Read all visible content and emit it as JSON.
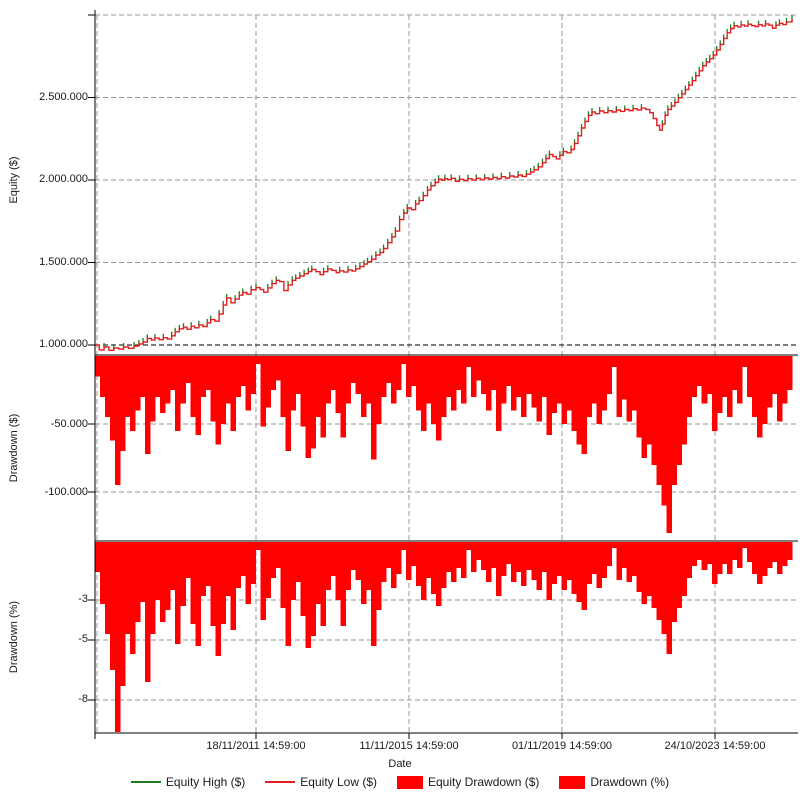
{
  "colors": {
    "background": "#ffffff",
    "equity_high_green": "#1e7d1e",
    "equity_low_red": "#e02020",
    "drawdown_fill_red": "#ff0000",
    "grid_gray": "#9a9a9a",
    "axis_black": "#000000",
    "text": "#1a1a1a"
  },
  "panels": {
    "equity": {
      "ylabel": "Equity ($)",
      "yticks": [
        "2.500.000",
        "2.000.000",
        "1.500.000",
        "1.000.000"
      ]
    },
    "drawdown_dollars": {
      "ylabel": "Drawdown ($)",
      "yticks": [
        "-50.000",
        "-100.000"
      ]
    },
    "drawdown_percent": {
      "ylabel": "Drawdown (%)",
      "yticks": [
        "-3",
        "-5",
        "-8"
      ]
    }
  },
  "xaxis": {
    "label": "Date",
    "ticks": [
      "18/11/2011 14:59:00",
      "11/11/2015 14:59:00",
      "01/11/2019 14:59:00",
      "24/10/2023 14:59:00"
    ]
  },
  "legend": {
    "items": [
      {
        "label": "Equity High ($)",
        "swatch": "line",
        "color": "#1e7d1e"
      },
      {
        "label": "Equity Low ($)",
        "swatch": "line",
        "color": "#e02020"
      },
      {
        "label": "Equity Drawdown ($)",
        "swatch": "box",
        "color": "#ff0000"
      },
      {
        "label": "Drawdown (%)",
        "swatch": "box",
        "color": "#ff0000"
      }
    ]
  },
  "chart_data": [
    {
      "type": "line",
      "title": "Equity curve",
      "ylabel": "Equity ($)",
      "ylim": [
        950000,
        3000000
      ],
      "x_axis_label": "Date",
      "x_tick_labels": [
        "18/11/2011 14:59:00",
        "11/11/2015 14:59:00",
        "01/11/2019 14:59:00",
        "24/10/2023 14:59:00"
      ],
      "x_unit": "fraction of shared date axis (approx. 2009 to 2025)",
      "series": [
        {
          "name": "Equity High ($)",
          "color": "#1e7d1e",
          "note": "nearly overlaps Equity Low; visible as small green up-ticks above the red line"
        },
        {
          "name": "Equity Low ($)",
          "color": "#e02020",
          "note": "main visible stepped red line; points below are [x_fraction, dollars]"
        }
      ],
      "points": [
        [
          0.0,
          1000000
        ],
        [
          0.006,
          970000
        ],
        [
          0.013,
          988000
        ],
        [
          0.02,
          968000
        ],
        [
          0.027,
          982000
        ],
        [
          0.034,
          975000
        ],
        [
          0.041,
          988000
        ],
        [
          0.048,
          980000
        ],
        [
          0.056,
          994000
        ],
        [
          0.063,
          1006000
        ],
        [
          0.069,
          1018000
        ],
        [
          0.075,
          1040000
        ],
        [
          0.081,
          1030000
        ],
        [
          0.086,
          1042000
        ],
        [
          0.092,
          1032000
        ],
        [
          0.098,
          1044000
        ],
        [
          0.104,
          1036000
        ],
        [
          0.11,
          1056000
        ],
        [
          0.115,
          1080000
        ],
        [
          0.121,
          1098000
        ],
        [
          0.127,
          1108000
        ],
        [
          0.132,
          1096000
        ],
        [
          0.138,
          1114000
        ],
        [
          0.143,
          1104000
        ],
        [
          0.149,
          1122000
        ],
        [
          0.155,
          1112000
        ],
        [
          0.161,
          1134000
        ],
        [
          0.166,
          1154000
        ],
        [
          0.172,
          1144000
        ],
        [
          0.178,
          1188000
        ],
        [
          0.184,
          1242000
        ],
        [
          0.189,
          1285000
        ],
        [
          0.195,
          1256000
        ],
        [
          0.201,
          1278000
        ],
        [
          0.207,
          1302000
        ],
        [
          0.212,
          1318000
        ],
        [
          0.218,
          1308000
        ],
        [
          0.224,
          1335000
        ],
        [
          0.231,
          1348000
        ],
        [
          0.237,
          1336000
        ],
        [
          0.242,
          1320000
        ],
        [
          0.248,
          1346000
        ],
        [
          0.254,
          1372000
        ],
        [
          0.26,
          1392000
        ],
        [
          0.265,
          1384000
        ],
        [
          0.271,
          1330000
        ],
        [
          0.277,
          1364000
        ],
        [
          0.283,
          1392000
        ],
        [
          0.288,
          1405000
        ],
        [
          0.294,
          1418000
        ],
        [
          0.3,
          1432000
        ],
        [
          0.306,
          1445000
        ],
        [
          0.311,
          1458000
        ],
        [
          0.317,
          1444000
        ],
        [
          0.323,
          1426000
        ],
        [
          0.328,
          1444000
        ],
        [
          0.334,
          1460000
        ],
        [
          0.34,
          1452000
        ],
        [
          0.346,
          1438000
        ],
        [
          0.351,
          1450000
        ],
        [
          0.357,
          1442000
        ],
        [
          0.363,
          1455000
        ],
        [
          0.369,
          1448000
        ],
        [
          0.374,
          1462000
        ],
        [
          0.38,
          1475000
        ],
        [
          0.386,
          1490000
        ],
        [
          0.391,
          1505000
        ],
        [
          0.397,
          1520000
        ],
        [
          0.403,
          1545000
        ],
        [
          0.409,
          1560000
        ],
        [
          0.414,
          1585000
        ],
        [
          0.42,
          1620000
        ],
        [
          0.426,
          1655000
        ],
        [
          0.431,
          1690000
        ],
        [
          0.437,
          1760000
        ],
        [
          0.443,
          1800000
        ],
        [
          0.448,
          1830000
        ],
        [
          0.454,
          1820000
        ],
        [
          0.46,
          1855000
        ],
        [
          0.465,
          1875000
        ],
        [
          0.471,
          1905000
        ],
        [
          0.477,
          1940000
        ],
        [
          0.482,
          1965000
        ],
        [
          0.488,
          1985000
        ],
        [
          0.493,
          2005000
        ],
        [
          0.498,
          1998000
        ],
        [
          0.502,
          2008000
        ],
        [
          0.506,
          2002000
        ],
        [
          0.511,
          2010000
        ],
        [
          0.517,
          1992000
        ],
        [
          0.523,
          2004000
        ],
        [
          0.529,
          1996000
        ],
        [
          0.535,
          2008000
        ],
        [
          0.541,
          2000000
        ],
        [
          0.547,
          2010000
        ],
        [
          0.553,
          2002000
        ],
        [
          0.559,
          2012000
        ],
        [
          0.565,
          2006000
        ],
        [
          0.571,
          2016000
        ],
        [
          0.577,
          2008000
        ],
        [
          0.583,
          2020000
        ],
        [
          0.589,
          2012000
        ],
        [
          0.595,
          2024000
        ],
        [
          0.601,
          2018000
        ],
        [
          0.607,
          2030000
        ],
        [
          0.613,
          2022000
        ],
        [
          0.619,
          2035000
        ],
        [
          0.625,
          2048000
        ],
        [
          0.63,
          2062000
        ],
        [
          0.636,
          2080000
        ],
        [
          0.642,
          2105000
        ],
        [
          0.647,
          2130000
        ],
        [
          0.652,
          2155000
        ],
        [
          0.657,
          2142000
        ],
        [
          0.662,
          2128000
        ],
        [
          0.667,
          2150000
        ],
        [
          0.672,
          2172000
        ],
        [
          0.677,
          2165000
        ],
        [
          0.683,
          2185000
        ],
        [
          0.688,
          2222000
        ],
        [
          0.693,
          2268000
        ],
        [
          0.698,
          2315000
        ],
        [
          0.703,
          2355000
        ],
        [
          0.708,
          2392000
        ],
        [
          0.713,
          2412000
        ],
        [
          0.718,
          2402000
        ],
        [
          0.724,
          2418000
        ],
        [
          0.73,
          2408000
        ],
        [
          0.736,
          2420000
        ],
        [
          0.742,
          2412000
        ],
        [
          0.748,
          2424000
        ],
        [
          0.754,
          2416000
        ],
        [
          0.76,
          2428000
        ],
        [
          0.766,
          2420000
        ],
        [
          0.772,
          2432000
        ],
        [
          0.778,
          2424000
        ],
        [
          0.784,
          2436000
        ],
        [
          0.79,
          2428000
        ],
        [
          0.796,
          2408000
        ],
        [
          0.801,
          2372000
        ],
        [
          0.806,
          2330000
        ],
        [
          0.81,
          2302000
        ],
        [
          0.814,
          2338000
        ],
        [
          0.818,
          2392000
        ],
        [
          0.822,
          2428000
        ],
        [
          0.827,
          2448000
        ],
        [
          0.832,
          2470000
        ],
        [
          0.837,
          2498000
        ],
        [
          0.842,
          2522000
        ],
        [
          0.847,
          2548000
        ],
        [
          0.852,
          2575000
        ],
        [
          0.857,
          2602000
        ],
        [
          0.862,
          2632000
        ],
        [
          0.867,
          2662000
        ],
        [
          0.872,
          2692000
        ],
        [
          0.877,
          2715000
        ],
        [
          0.882,
          2735000
        ],
        [
          0.887,
          2758000
        ],
        [
          0.892,
          2788000
        ],
        [
          0.897,
          2822000
        ],
        [
          0.902,
          2858000
        ],
        [
          0.907,
          2892000
        ],
        [
          0.912,
          2918000
        ],
        [
          0.917,
          2935000
        ],
        [
          0.922,
          2928000
        ],
        [
          0.927,
          2940000
        ],
        [
          0.932,
          2932000
        ],
        [
          0.937,
          2944000
        ],
        [
          0.942,
          2936000
        ],
        [
          0.947,
          2930000
        ],
        [
          0.952,
          2942000
        ],
        [
          0.957,
          2934000
        ],
        [
          0.962,
          2946000
        ],
        [
          0.967,
          2938000
        ],
        [
          0.972,
          2920000
        ],
        [
          0.977,
          2938000
        ],
        [
          0.982,
          2950000
        ],
        [
          0.987,
          2942000
        ],
        [
          0.992,
          2958000
        ],
        [
          1.0,
          2975000
        ]
      ]
    },
    {
      "type": "bar",
      "title": "Equity Drawdown ($)",
      "ylabel": "Drawdown ($)",
      "ylim": [
        -137000,
        0
      ],
      "bar_color": "#ff0000",
      "x_start_frac": 0.0,
      "x_step_frac": 0.00722,
      "values": [
        -15000,
        -30000,
        -45000,
        -62000,
        -95000,
        -70000,
        -45000,
        -55000,
        -40000,
        -30000,
        -72000,
        -48000,
        -30000,
        -42000,
        -35000,
        -25000,
        -55000,
        -35000,
        -20000,
        -45000,
        -58000,
        -30000,
        -25000,
        -48000,
        -65000,
        -50000,
        -35000,
        -55000,
        -30000,
        -22000,
        -40000,
        -28000,
        -6000,
        -52000,
        -38000,
        -25000,
        -18000,
        -45000,
        -70000,
        -40000,
        -28000,
        -52000,
        -75000,
        -68000,
        -45000,
        -60000,
        -35000,
        -25000,
        -42000,
        -60000,
        -35000,
        -20000,
        -28000,
        -45000,
        -35000,
        -76000,
        -50000,
        -30000,
        -20000,
        -35000,
        -25000,
        -6000,
        -30000,
        -22000,
        -40000,
        -55000,
        -35000,
        -50000,
        -62000,
        -45000,
        -30000,
        -40000,
        -25000,
        -35000,
        -8000,
        -30000,
        -18000,
        -28000,
        -40000,
        -25000,
        -55000,
        -35000,
        -22000,
        -40000,
        -30000,
        -45000,
        -28000,
        -38000,
        -48000,
        -30000,
        -58000,
        -42000,
        -35000,
        -50000,
        -40000,
        -55000,
        -65000,
        -72000,
        -45000,
        -35000,
        -50000,
        -40000,
        -28000,
        -8000,
        -45000,
        -32000,
        -48000,
        -40000,
        -60000,
        -75000,
        -65000,
        -80000,
        -95000,
        -110000,
        -130000,
        -95000,
        -80000,
        -65000,
        -45000,
        -30000,
        -22000,
        -35000,
        -28000,
        -55000,
        -42000,
        -30000,
        -45000,
        -25000,
        -35000,
        -8000,
        -30000,
        -45000,
        -60000,
        -50000,
        -38000,
        -28000,
        -48000,
        -35000,
        -25000
      ]
    },
    {
      "type": "bar",
      "title": "Drawdown (%)",
      "ylabel": "Drawdown (%)",
      "ylim": [
        -9.8,
        0
      ],
      "bar_color": "#ff0000",
      "x_start_frac": 0.0,
      "x_step_frac": 0.00722,
      "values": [
        -1.5,
        -3.1,
        -4.6,
        -6.4,
        -9.7,
        -7.2,
        -4.6,
        -5.6,
        -4.0,
        -3.0,
        -7.0,
        -4.6,
        -2.9,
        -4.0,
        -3.4,
        -2.4,
        -5.1,
        -3.2,
        -1.8,
        -4.1,
        -5.2,
        -2.7,
        -2.2,
        -4.2,
        -5.7,
        -4.1,
        -2.7,
        -4.4,
        -2.3,
        -1.7,
        -3.1,
        -2.1,
        -0.4,
        -3.9,
        -2.8,
        -1.8,
        -1.3,
        -3.3,
        -5.2,
        -2.9,
        -2.0,
        -3.7,
        -5.3,
        -4.7,
        -3.1,
        -4.2,
        -2.4,
        -1.7,
        -2.9,
        -4.2,
        -2.4,
        -1.4,
        -1.9,
        -3.1,
        -2.4,
        -5.2,
        -3.4,
        -2.0,
        -1.3,
        -2.3,
        -1.6,
        -0.4,
        -1.9,
        -1.2,
        -2.2,
        -2.9,
        -1.8,
        -2.6,
        -3.2,
        -2.3,
        -1.5,
        -2.0,
        -1.3,
        -1.8,
        -0.4,
        -1.5,
        -0.9,
        -1.4,
        -2.0,
        -1.3,
        -2.7,
        -1.7,
        -1.1,
        -2.0,
        -1.5,
        -2.2,
        -1.4,
        -1.9,
        -2.4,
        -1.5,
        -2.9,
        -2.1,
        -1.7,
        -2.4,
        -1.9,
        -2.6,
        -3.0,
        -3.4,
        -2.1,
        -1.6,
        -2.3,
        -1.8,
        -1.2,
        -0.3,
        -1.9,
        -1.3,
        -2.0,
        -1.7,
        -2.5,
        -3.1,
        -2.7,
        -3.3,
        -3.9,
        -4.6,
        -5.6,
        -4.0,
        -3.3,
        -2.7,
        -1.8,
        -1.2,
        -0.9,
        -1.4,
        -1.1,
        -2.1,
        -1.6,
        -1.1,
        -1.6,
        -0.9,
        -1.3,
        -0.3,
        -1.0,
        -1.6,
        -2.1,
        -1.7,
        -1.3,
        -1.0,
        -1.6,
        -1.2,
        -0.9
      ]
    }
  ]
}
